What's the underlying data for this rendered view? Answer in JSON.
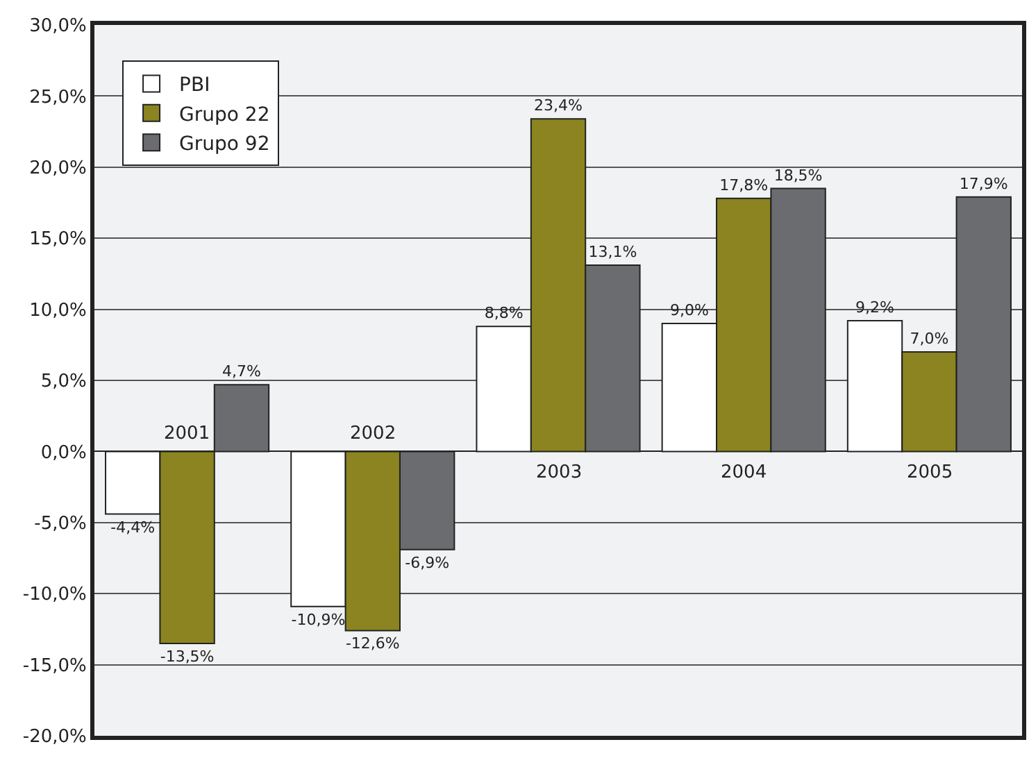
{
  "chart_data": {
    "type": "bar",
    "categories": [
      "2001",
      "2002",
      "2003",
      "2004",
      "2005"
    ],
    "series": [
      {
        "name": "PBI",
        "color": "#ffffff",
        "values": [
          -4.4,
          -10.9,
          8.8,
          9.0,
          9.2
        ],
        "value_labels": [
          "-4,4%",
          "-10,9%",
          "8,8%",
          "9,0%",
          "9,2%"
        ]
      },
      {
        "name": "Grupo 22",
        "color": "#8b8420",
        "values": [
          -13.5,
          -12.6,
          23.4,
          17.8,
          7.0
        ],
        "value_labels": [
          "-13,5%",
          "-12,6%",
          "23,4%",
          "17,8%",
          "7,0%"
        ]
      },
      {
        "name": "Grupo 92",
        "color": "#6b6c70",
        "values": [
          4.7,
          -6.9,
          13.1,
          18.5,
          17.9
        ],
        "value_labels": [
          "4,7%",
          "-6,9%",
          "13,1%",
          "18,5%",
          "17,9%"
        ]
      }
    ],
    "ylim": [
      -20,
      30
    ],
    "yticks": [
      {
        "value": -20,
        "label": "-20,0%"
      },
      {
        "value": -15,
        "label": "-15,0%"
      },
      {
        "value": -10,
        "label": "-10,0%"
      },
      {
        "value": -5,
        "label": "-5,0%"
      },
      {
        "value": 0,
        "label": "0,0%"
      },
      {
        "value": 5,
        "label": "5,0%"
      },
      {
        "value": 10,
        "label": "10,0%"
      },
      {
        "value": 15,
        "label": "15,0%"
      },
      {
        "value": 20,
        "label": "20,0%"
      },
      {
        "value": 25,
        "label": "25,0%"
      },
      {
        "value": 30,
        "label": "30,0%"
      }
    ],
    "grid": "y",
    "legend": "top left"
  }
}
